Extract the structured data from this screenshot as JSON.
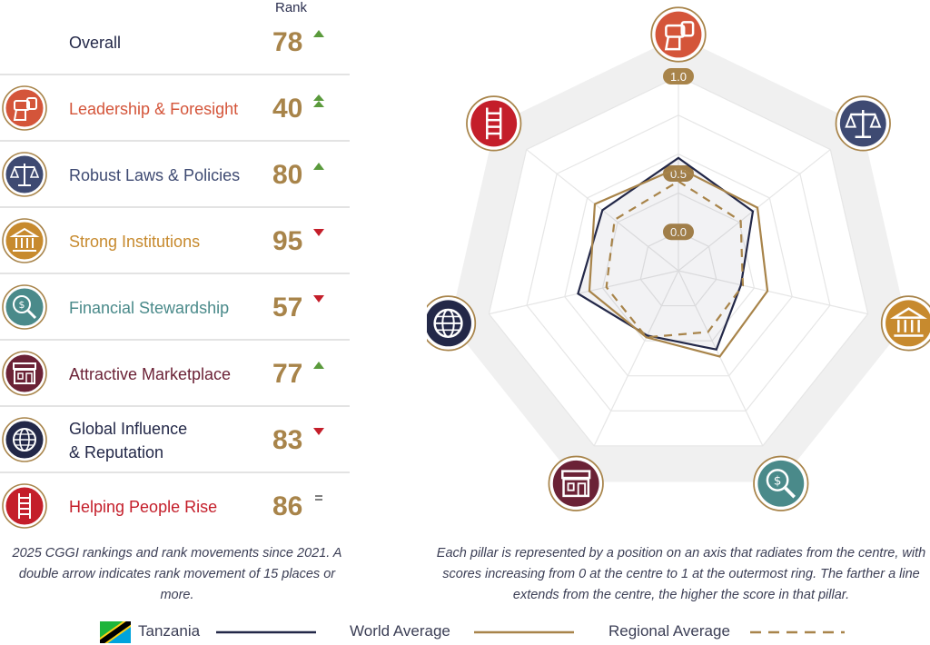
{
  "header": {
    "rank_label": "Rank"
  },
  "overall": {
    "label": "Overall",
    "rank": "78",
    "movement": "up"
  },
  "pillars": [
    {
      "id": "leadership",
      "label": "Leadership & Foresight",
      "rank": "40",
      "movement": "double-up",
      "color": "#d4553a",
      "icon": "binoculars-icon"
    },
    {
      "id": "laws",
      "label": "Robust Laws & Policies",
      "rank": "80",
      "movement": "up",
      "color": "#3e4a72",
      "icon": "scales-icon"
    },
    {
      "id": "institutions",
      "label": "Strong Institutions",
      "rank": "95",
      "movement": "down",
      "color": "#c78a2e",
      "icon": "institution-icon"
    },
    {
      "id": "financial",
      "label": "Financial Stewardship",
      "rank": "57",
      "movement": "down",
      "color": "#4a8a8a",
      "icon": "money-search-icon"
    },
    {
      "id": "marketplace",
      "label": "Attractive Marketplace",
      "rank": "77",
      "movement": "up",
      "color": "#6b2236",
      "icon": "storefront-icon"
    },
    {
      "id": "global",
      "label": "Global Influence\n& Reputation",
      "rank": "83",
      "movement": "down",
      "color": "#232848",
      "icon": "globe-icon"
    },
    {
      "id": "people",
      "label": "Helping People Rise",
      "rank": "86",
      "movement": "same",
      "color": "#c41e2a",
      "icon": "ladder-icon"
    }
  ],
  "colors": {
    "rank_gold": "#a8844a",
    "up": "#5a9a3c",
    "down": "#c41e2a",
    "same": "#555555",
    "tanzania": "#232848",
    "world": "#a8844a",
    "regional": "#a8844a"
  },
  "captions": {
    "left": "2025 CGGI rankings and rank movements since 2021. A double arrow indicates rank movement of 15 places or more.",
    "right": "Each pillar is represented by a position on an axis that radiates from the centre, with scores increasing from 0 at the centre to 1 at the outermost ring. The farther a line extends from the centre, the higher the score in that pillar."
  },
  "legend": {
    "tanzania": "Tanzania",
    "world": "World Average",
    "regional": "Regional Average"
  },
  "chart_data": {
    "type": "radar",
    "axes": [
      "Leadership & Foresight",
      "Robust Laws & Policies",
      "Strong Institutions",
      "Financial Stewardship",
      "Attractive Marketplace",
      "Global Influence & Reputation",
      "Helping People Rise"
    ],
    "ring_labels": [
      "0.0",
      "0.5",
      "1.0"
    ],
    "range": [
      0,
      1
    ],
    "series": [
      {
        "name": "Tanzania",
        "values": [
          0.58,
          0.49,
          0.33,
          0.45,
          0.37,
          0.53,
          0.5
        ]
      },
      {
        "name": "World Average",
        "values": [
          0.53,
          0.52,
          0.47,
          0.49,
          0.38,
          0.47,
          0.55
        ]
      },
      {
        "name": "Regional Average",
        "values": [
          0.46,
          0.41,
          0.34,
          0.35,
          0.38,
          0.38,
          0.42
        ]
      }
    ]
  }
}
